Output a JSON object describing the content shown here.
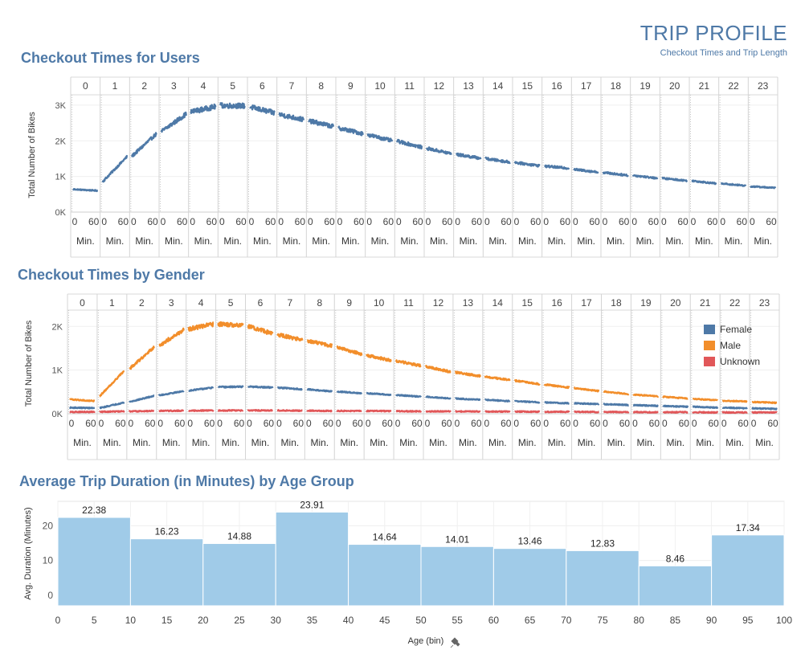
{
  "header": {
    "title": "TRIP PROFILE",
    "subtitle": "Checkout Times and Trip Length"
  },
  "sections": {
    "users_title": "Checkout Times for Users",
    "gender_title": "Checkout Times by Gender",
    "age_title": "Average Trip Duration (in Minutes) by Age Group"
  },
  "chart_data": [
    {
      "type": "line",
      "title": "Checkout Times for Users",
      "ylabel": "Total Number of Bikes",
      "column_headers": [
        "0",
        "1",
        "2",
        "3",
        "4",
        "5",
        "6",
        "7",
        "8",
        "9",
        "10",
        "11",
        "12",
        "13",
        "14",
        "15",
        "16",
        "17",
        "18",
        "19",
        "20",
        "21",
        "22",
        "23"
      ],
      "x_ticks": [
        "0",
        "60"
      ],
      "x_unit_label": "Min.",
      "y_ticks": [
        "0K",
        "1K",
        "2K",
        "3K"
      ],
      "ylim": [
        0,
        3200
      ],
      "grid": true,
      "series": [
        {
          "color": "#4e79a7",
          "hourly_start": [
            640,
            850,
            1570,
            2260,
            2810,
            2990,
            2950,
            2740,
            2560,
            2360,
            2170,
            1990,
            1790,
            1620,
            1500,
            1390,
            1290,
            1200,
            1110,
            1030,
            950,
            880,
            800,
            720
          ],
          "hourly_end": [
            600,
            1560,
            2200,
            2750,
            2960,
            2980,
            2780,
            2590,
            2400,
            2200,
            2000,
            1820,
            1640,
            1510,
            1400,
            1300,
            1230,
            1120,
            1030,
            950,
            880,
            800,
            740,
            680
          ]
        }
      ]
    },
    {
      "type": "line",
      "title": "Checkout Times by Gender",
      "ylabel": "Total Number of Bikes",
      "column_headers": [
        "0",
        "1",
        "2",
        "3",
        "4",
        "5",
        "6",
        "7",
        "8",
        "9",
        "10",
        "11",
        "12",
        "13",
        "14",
        "15",
        "16",
        "17",
        "18",
        "19",
        "20",
        "21",
        "22",
        "23"
      ],
      "x_ticks": [
        "0",
        "60"
      ],
      "x_unit_label": "Min.",
      "y_ticks": [
        "0K",
        "1K",
        "2K"
      ],
      "ylim": [
        0,
        2300
      ],
      "legend_position": "right",
      "grid": true,
      "series": [
        {
          "name": "Female",
          "color": "#4e79a7",
          "hourly_start": [
            140,
            130,
            270,
            420,
            530,
            610,
            620,
            600,
            560,
            510,
            470,
            430,
            390,
            350,
            320,
            290,
            260,
            240,
            220,
            200,
            180,
            160,
            140,
            125
          ],
          "hourly_end": [
            130,
            260,
            410,
            520,
            600,
            620,
            600,
            560,
            510,
            470,
            430,
            390,
            350,
            320,
            290,
            260,
            240,
            220,
            200,
            180,
            160,
            140,
            125,
            110
          ]
        },
        {
          "name": "Male",
          "color": "#f28e2b",
          "hourly_start": [
            330,
            400,
            1020,
            1560,
            1940,
            2050,
            2010,
            1810,
            1670,
            1530,
            1340,
            1210,
            1080,
            950,
            850,
            760,
            670,
            590,
            510,
            440,
            390,
            340,
            300,
            270
          ],
          "hourly_end": [
            290,
            990,
            1530,
            1920,
            2050,
            2030,
            1830,
            1690,
            1550,
            1360,
            1220,
            1100,
            960,
            860,
            770,
            680,
            600,
            520,
            450,
            400,
            350,
            310,
            280,
            250
          ]
        },
        {
          "name": "Unknown",
          "color": "#e15759",
          "hourly_start": [
            40,
            45,
            55,
            65,
            70,
            75,
            75,
            75,
            70,
            65,
            65,
            60,
            55,
            55,
            50,
            50,
            45,
            45,
            40,
            40,
            35,
            35,
            30,
            30
          ],
          "hourly_end": [
            45,
            55,
            65,
            70,
            75,
            75,
            75,
            70,
            65,
            65,
            60,
            55,
            55,
            50,
            50,
            45,
            45,
            40,
            40,
            35,
            35,
            30,
            30,
            30
          ]
        }
      ]
    },
    {
      "type": "bar",
      "title": "Average Trip Duration (in Minutes) by Age Group",
      "xlabel": "Age (bin)",
      "ylabel": "Avg. Duration (Minutes)",
      "bin_edges": [
        0,
        10,
        20,
        30,
        40,
        50,
        60,
        70,
        80,
        90,
        100
      ],
      "x_ticks": [
        "0",
        "5",
        "10",
        "15",
        "20",
        "25",
        "30",
        "35",
        "40",
        "45",
        "50",
        "55",
        "60",
        "65",
        "70",
        "75",
        "80",
        "85",
        "90",
        "95",
        "100"
      ],
      "values": [
        22.38,
        16.23,
        14.88,
        23.91,
        14.64,
        14.01,
        13.46,
        12.83,
        8.46,
        17.34
      ],
      "value_labels": [
        "22.38",
        "16.23",
        "14.88",
        "23.91",
        "14.64",
        "14.01",
        "13.46",
        "12.83",
        "8.46",
        "17.34"
      ],
      "y_ticks": [
        "0",
        "10",
        "20"
      ],
      "ylim": [
        -3,
        27
      ],
      "bar_color": "#a0cbe8",
      "grid": true
    }
  ]
}
